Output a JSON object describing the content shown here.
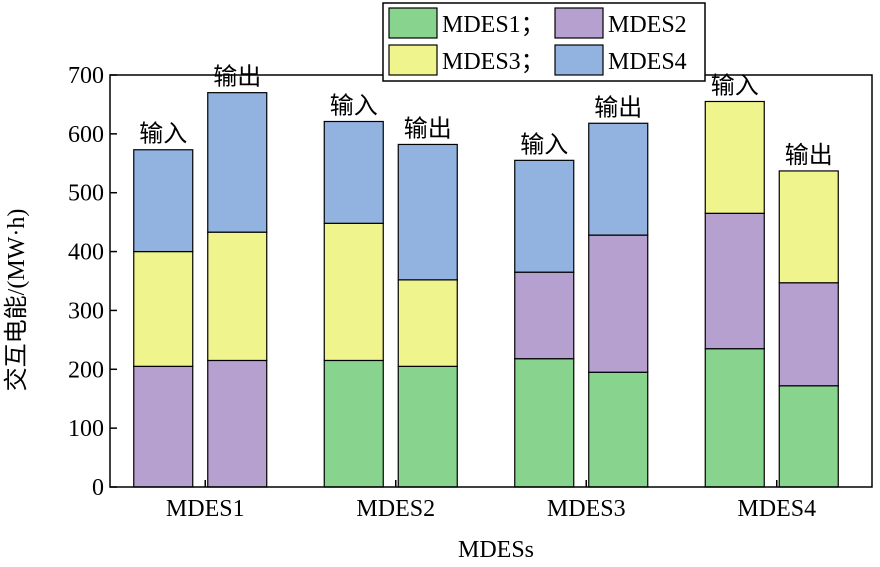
{
  "chart_data": {
    "type": "bar",
    "stacked": true,
    "title": "",
    "xlabel": "MDESs",
    "ylabel": "交互电能/(MW·h)",
    "ylim": [
      0,
      700
    ],
    "yticks": [
      0,
      100,
      200,
      300,
      400,
      500,
      600,
      700
    ],
    "grid": false,
    "legend_position": "top-right",
    "categories": [
      "MDES1",
      "MDES2",
      "MDES3",
      "MDES4"
    ],
    "bars_per_category": [
      "输入",
      "输出"
    ],
    "legend": [
      "MDES1；",
      "MDES2",
      "MDES3；",
      "MDES4"
    ],
    "series": [
      {
        "key": "MDES1",
        "color": "#88d48e",
        "values": [
          [
            0,
            0
          ],
          [
            215,
            205
          ],
          [
            218,
            195
          ],
          [
            235,
            172
          ]
        ]
      },
      {
        "key": "MDES2",
        "color": "#b5a0cf",
        "values": [
          [
            205,
            215
          ],
          [
            0,
            0
          ],
          [
            147,
            233
          ],
          [
            230,
            175
          ]
        ]
      },
      {
        "key": "MDES3",
        "color": "#f0f48c",
        "values": [
          [
            195,
            218
          ],
          [
            233,
            147
          ],
          [
            0,
            0
          ],
          [
            190,
            190
          ]
        ]
      },
      {
        "key": "MDES4",
        "color": "#92b3e0",
        "values": [
          [
            173,
            237
          ],
          [
            173,
            230
          ],
          [
            190,
            190
          ],
          [
            0,
            0
          ]
        ]
      }
    ]
  }
}
